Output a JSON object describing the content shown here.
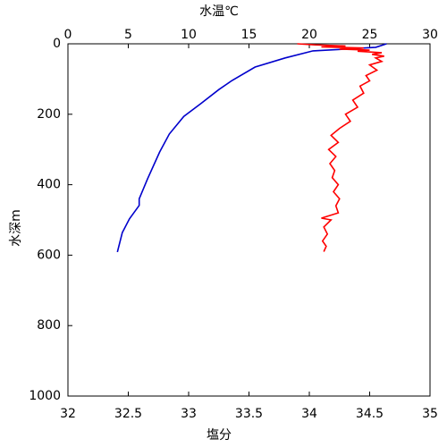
{
  "chart_data": {
    "type": "profile",
    "x2label": "水温℃",
    "x2label_color": "#0000cc",
    "x2lim": [
      0,
      30
    ],
    "x2ticks": [
      0,
      5,
      10,
      15,
      20,
      25,
      30
    ],
    "xlabel": "塩分",
    "xlabel_color": "#ff0000",
    "xlim": [
      32,
      35
    ],
    "xticks": [
      32,
      32.5,
      33,
      33.5,
      34,
      34.5,
      35
    ],
    "ylabel": "水深m",
    "ylim": [
      0,
      1000
    ],
    "yticks": [
      0,
      200,
      400,
      600,
      800,
      1000
    ],
    "y_inverted": true,
    "series": [
      {
        "color": "#0000cc",
        "axis": "x2",
        "x": [
          26.4,
          25.5,
          22.5,
          20.3,
          18,
          15.5,
          13.6,
          12.5,
          11,
          9.6,
          8.4,
          7.6,
          6.6,
          5.9,
          5.9,
          5.1,
          4.5,
          4.1
        ],
        "y": [
          0,
          10,
          16,
          20,
          40,
          66,
          104,
          130,
          170,
          206,
          256,
          307,
          383,
          440,
          459,
          497,
          536,
          591
        ]
      },
      {
        "color": "#ff0000",
        "x": [
          33.9,
          34.05,
          34.3,
          34.1,
          34.45,
          34.25,
          34.5,
          34.4,
          34.6,
          34.52,
          34.62,
          34.55,
          34.6,
          34.5,
          34.56,
          34.47,
          34.5,
          34.42,
          34.45,
          34.36,
          34.4,
          34.3,
          34.34,
          34.25,
          34.18,
          34.24,
          34.16,
          34.22,
          34.17,
          34.21,
          34.19,
          34.24,
          34.2,
          34.25,
          34.22,
          34.24,
          34.1,
          34.18,
          34.12,
          34.15,
          34.11,
          34.14,
          34.12
        ],
        "y": [
          0,
          3,
          6,
          9,
          12,
          15,
          18,
          21,
          25,
          30,
          35,
          40,
          50,
          60,
          75,
          90,
          105,
          120,
          140,
          160,
          180,
          200,
          220,
          240,
          260,
          280,
          300,
          320,
          340,
          360,
          380,
          400,
          420,
          440,
          460,
          480,
          495,
          500,
          520,
          540,
          560,
          575,
          590
        ]
      }
    ]
  }
}
